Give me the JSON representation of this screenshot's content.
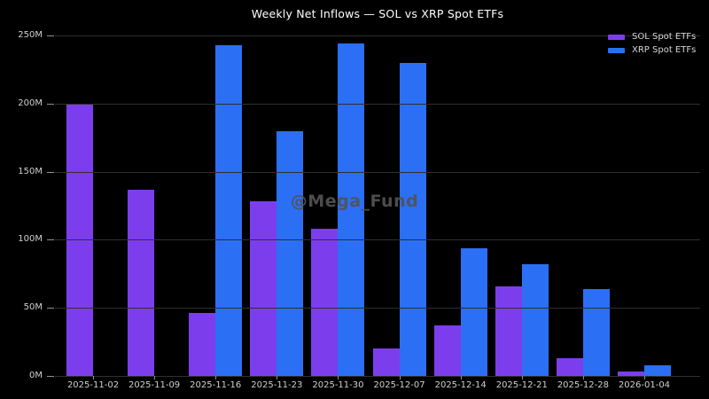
{
  "title": "Weekly Net Inflows — SOL vs XRP Spot ETFs",
  "watermark": {
    "text": "@Mega_Fund"
  },
  "colors": {
    "background": "#000000",
    "sol_purple": "#7c3eed",
    "xrp_blue": "#2b6ff5",
    "gridline": "#2f2f2f",
    "tick_text": "#cfcfcf",
    "title_text": "#ffffff",
    "watermark_text": "#525252"
  },
  "legend": {
    "position": "upper right",
    "entries": [
      {
        "label": "SOL Spot ETFs",
        "color": "#7c3eed"
      },
      {
        "label": "XRP Spot ETFs",
        "color": "#2b6ff5"
      }
    ]
  },
  "chart_data": {
    "type": "bar",
    "title": "Weekly Net Inflows — SOL vs XRP Spot ETFs",
    "xlabel": "",
    "ylabel": "",
    "unit": "M (millions USD)",
    "grid": true,
    "legend_position": "upper right",
    "ylim": [
      0,
      250
    ],
    "y_tick_values": [
      0,
      50,
      100,
      150,
      200,
      250
    ],
    "y_tick_labels": [
      "0M",
      "50M",
      "100M",
      "150M",
      "200M",
      "250M"
    ],
    "categories": [
      "2025-11-02",
      "2025-11-09",
      "2025-11-16",
      "2025-11-23",
      "2025-11-30",
      "2025-12-07",
      "2025-12-14",
      "2025-12-21",
      "2025-12-28",
      "2026-01-04"
    ],
    "series": [
      {
        "name": "SOL Spot ETFs",
        "color": "#7c3eed",
        "values": [
          199,
          137,
          46,
          128,
          108,
          20,
          37,
          66,
          13,
          3
        ]
      },
      {
        "name": "XRP Spot ETFs",
        "color": "#2b6ff5",
        "values": [
          0,
          0,
          243,
          180,
          244,
          230,
          94,
          82,
          64,
          8
        ]
      }
    ]
  }
}
